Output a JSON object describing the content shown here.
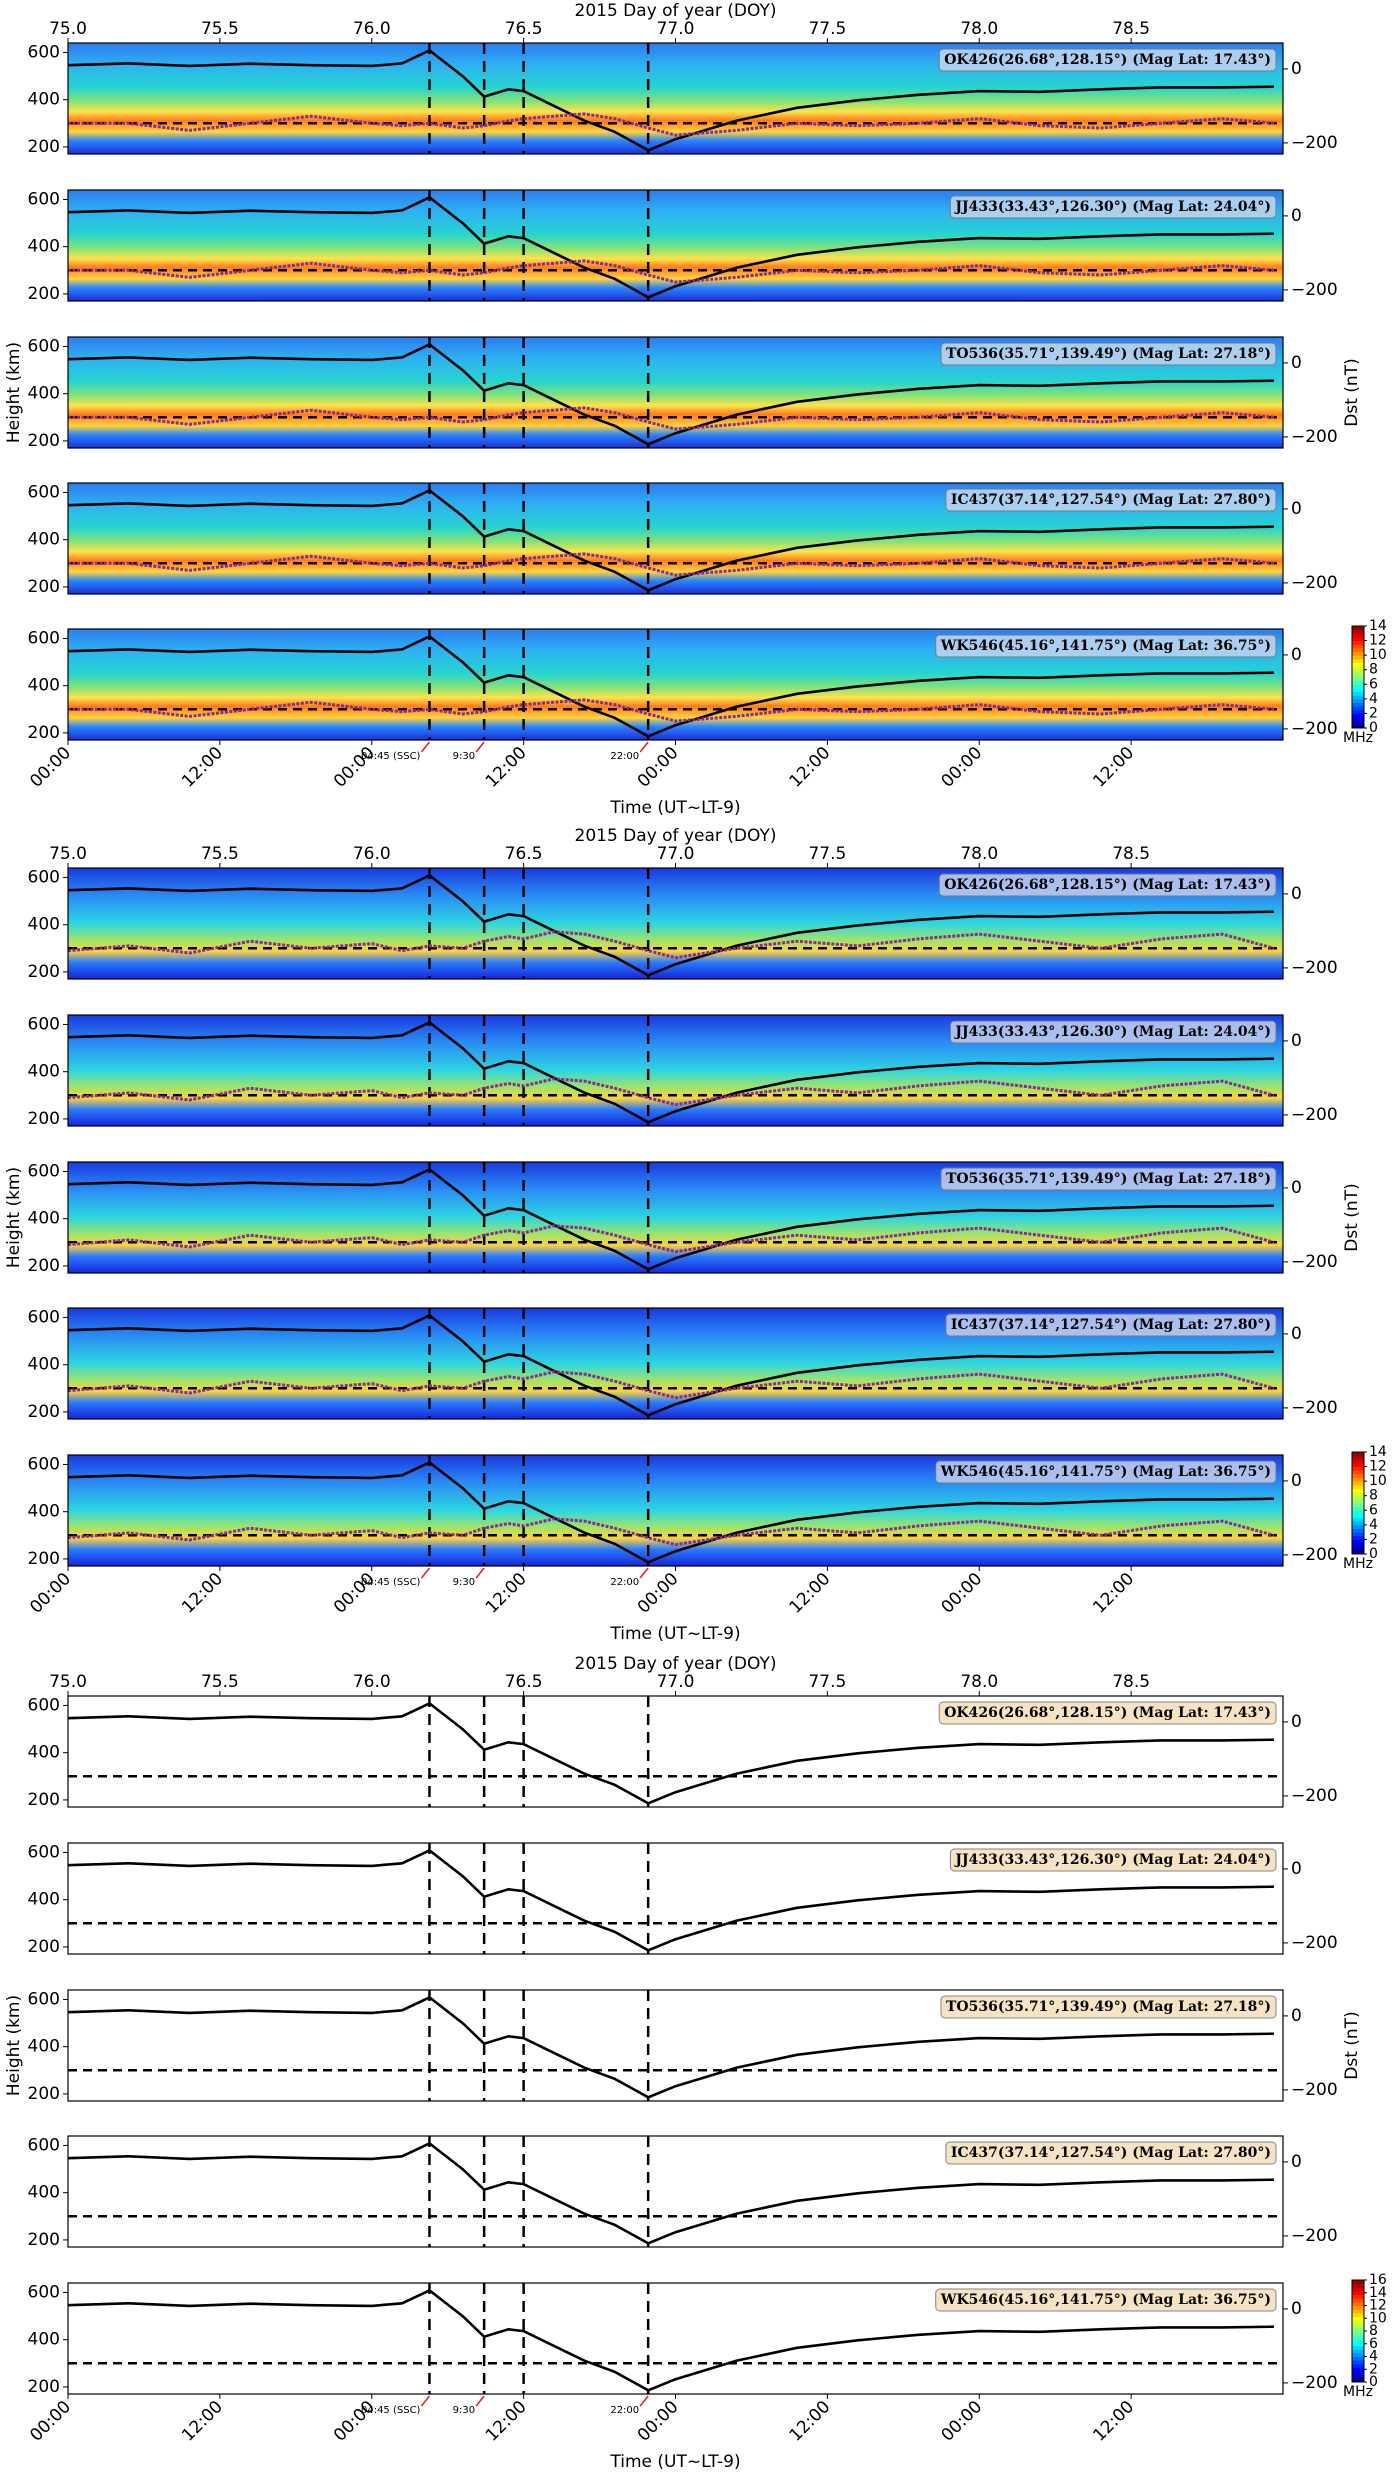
{
  "chart_data": [
    {
      "type": "contour",
      "title": "2015 Day of year (DOY)",
      "xlabel": "Time (UT~LT-9)",
      "ylabel": "Height (km)",
      "y2label": "Dst (nT)",
      "xlim": [
        75.0,
        79.0
      ],
      "x2ticks": [
        {
          "value": 75.0,
          "label": "75.0"
        },
        75.5,
        {
          "value": 76.0,
          "label": "76.0"
        },
        76.5,
        {
          "value": 77.0,
          "label": "77.0"
        },
        77.5,
        {
          "value": 78.0,
          "label": "78.0"
        },
        78.5
      ],
      "xticks": [
        {
          "value": 75.0,
          "label": "00:00"
        },
        {
          "value": 75.5,
          "label": "12:00"
        },
        {
          "value": 76.0,
          "label": "00:00"
        },
        {
          "value": 76.5,
          "label": "12:00"
        },
        {
          "value": 77.0,
          "label": "00:00"
        },
        {
          "value": 77.5,
          "label": "12:00"
        },
        {
          "value": 78.0,
          "label": "00:00"
        },
        {
          "value": 78.5,
          "label": "12:00"
        }
      ],
      "ylim": [
        170,
        640
      ],
      "yticks": [
        200,
        400,
        600
      ],
      "y2lim": [
        -230,
        70
      ],
      "y2ticks": [
        0,
        {
          "value": -200,
          "label": "−200"
        }
      ],
      "hline": 300,
      "vlines": [
        76.19,
        76.37,
        76.5,
        76.91
      ],
      "annotations": [
        {
          "x": 76.19,
          "label": "04:45 (SSC)"
        },
        {
          "x": 76.37,
          "label": "9:30"
        },
        {
          "x": 76.91,
          "label": "22:00"
        }
      ],
      "panels": [
        {
          "label": "OK426(26.68°,128.15°) (Mag Lat: 17.43°)"
        },
        {
          "label": "JJ433(33.43°,126.30°) (Mag Lat: 24.04°)"
        },
        {
          "label": "TO536(35.71°,139.49°) (Mag Lat: 27.18°)"
        },
        {
          "label": "IC437(37.14°,127.54°) (Mag Lat: 27.80°)"
        },
        {
          "label": "WK546(45.16°,141.75°) (Mag Lat: 36.75°)"
        }
      ],
      "x": [
        75.0,
        75.2,
        75.4,
        75.6,
        75.8,
        76.0,
        76.1,
        76.19,
        76.3,
        76.37,
        76.45,
        76.5,
        76.6,
        76.7,
        76.8,
        76.91,
        77.0,
        77.2,
        77.4,
        77.6,
        77.8,
        78.0,
        78.2,
        78.4,
        78.6,
        78.8,
        78.97
      ],
      "series": [
        {
          "color": "#000000",
          "axis": "y2",
          "values": [
            10,
            15,
            8,
            14,
            10,
            8,
            15,
            50,
            -20,
            -75,
            -55,
            -60,
            -100,
            -140,
            -170,
            -220,
            -190,
            -140,
            -105,
            -85,
            -70,
            -60,
            -62,
            -55,
            -50,
            -50,
            -48
          ]
        },
        {
          "color": "#8b2a8b",
          "values": [
            300,
            300,
            270,
            300,
            330,
            300,
            290,
            300,
            280,
            290,
            310,
            320,
            330,
            340,
            320,
            280,
            250,
            270,
            300,
            290,
            300,
            320,
            290,
            280,
            300,
            320,
            300
          ]
        }
      ],
      "colorbar": {
        "label": "MHz",
        "lim": [
          0,
          14
        ],
        "ticks": [
          0,
          2,
          4,
          6,
          8,
          10,
          12,
          14
        ]
      }
    },
    {
      "type": "contour",
      "title": "2015 Day of year (DOY)",
      "xlabel": "Time (UT~LT-9)",
      "ylabel": "Height (km)",
      "y2label": "Dst (nT)",
      "xlim": [
        75.0,
        79.0
      ],
      "x2ticks": [
        {
          "value": 75.0,
          "label": "75.0"
        },
        75.5,
        {
          "value": 76.0,
          "label": "76.0"
        },
        76.5,
        {
          "value": 77.0,
          "label": "77.0"
        },
        77.5,
        {
          "value": 78.0,
          "label": "78.0"
        },
        78.5
      ],
      "xticks": [
        {
          "value": 75.0,
          "label": "00:00"
        },
        {
          "value": 75.5,
          "label": "12:00"
        },
        {
          "value": 76.0,
          "label": "00:00"
        },
        {
          "value": 76.5,
          "label": "12:00"
        },
        {
          "value": 77.0,
          "label": "00:00"
        },
        {
          "value": 77.5,
          "label": "12:00"
        },
        {
          "value": 78.0,
          "label": "00:00"
        },
        {
          "value": 78.5,
          "label": "12:00"
        }
      ],
      "ylim": [
        170,
        640
      ],
      "yticks": [
        200,
        400,
        600
      ],
      "y2lim": [
        -230,
        70
      ],
      "y2ticks": [
        0,
        {
          "value": -200,
          "label": "−200"
        }
      ],
      "hline": 300,
      "vlines": [
        76.19,
        76.37,
        76.5,
        76.91
      ],
      "annotations": [
        {
          "x": 76.19,
          "label": "04:45 (SSC)"
        },
        {
          "x": 76.37,
          "label": "9:30"
        },
        {
          "x": 76.91,
          "label": "22:00"
        }
      ],
      "panels": [
        {
          "label": "OK426(26.68°,128.15°) (Mag Lat: 17.43°)"
        },
        {
          "label": "JJ433(33.43°,126.30°) (Mag Lat: 24.04°)"
        },
        {
          "label": "TO536(35.71°,139.49°) (Mag Lat: 27.18°)"
        },
        {
          "label": "IC437(37.14°,127.54°) (Mag Lat: 27.80°)"
        },
        {
          "label": "WK546(45.16°,141.75°) (Mag Lat: 36.75°)"
        }
      ],
      "x": [
        75.0,
        75.2,
        75.4,
        75.6,
        75.8,
        76.0,
        76.1,
        76.19,
        76.3,
        76.37,
        76.45,
        76.5,
        76.6,
        76.7,
        76.8,
        76.91,
        77.0,
        77.2,
        77.4,
        77.6,
        77.8,
        78.0,
        78.2,
        78.4,
        78.6,
        78.8,
        78.97
      ],
      "series": [
        {
          "color": "#000000",
          "axis": "y2",
          "values": [
            10,
            15,
            8,
            14,
            10,
            8,
            15,
            50,
            -20,
            -75,
            -55,
            -60,
            -100,
            -140,
            -170,
            -220,
            -190,
            -140,
            -105,
            -85,
            -70,
            -60,
            -62,
            -55,
            -50,
            -50,
            -48
          ]
        },
        {
          "color": "#8b2a8b",
          "values": [
            290,
            310,
            280,
            330,
            300,
            320,
            290,
            310,
            300,
            330,
            350,
            340,
            370,
            360,
            330,
            290,
            260,
            300,
            330,
            310,
            340,
            360,
            330,
            300,
            340,
            360,
            300
          ]
        }
      ],
      "colorbar": {
        "label": "MHz",
        "lim": [
          0,
          14
        ],
        "ticks": [
          0,
          2,
          4,
          6,
          8,
          10,
          12,
          14
        ]
      }
    },
    {
      "type": "contour",
      "title": "2015 Day of year (DOY)",
      "xlabel": "Time (UT~LT-9)",
      "ylabel": "Height (km)",
      "y2label": "Dst (nT)",
      "xlim": [
        75.0,
        79.0
      ],
      "x2ticks": [
        {
          "value": 75.0,
          "label": "75.0"
        },
        75.5,
        {
          "value": 76.0,
          "label": "76.0"
        },
        76.5,
        {
          "value": 77.0,
          "label": "77.0"
        },
        77.5,
        {
          "value": 78.0,
          "label": "78.0"
        },
        78.5
      ],
      "xticks": [
        {
          "value": 75.0,
          "label": "00:00"
        },
        {
          "value": 75.5,
          "label": "12:00"
        },
        {
          "value": 76.0,
          "label": "00:00"
        },
        {
          "value": 76.5,
          "label": "12:00"
        },
        {
          "value": 77.0,
          "label": "00:00"
        },
        {
          "value": 77.5,
          "label": "12:00"
        },
        {
          "value": 78.0,
          "label": "00:00"
        },
        {
          "value": 78.5,
          "label": "12:00"
        }
      ],
      "ylim": [
        170,
        640
      ],
      "yticks": [
        200,
        400,
        600
      ],
      "y2lim": [
        -230,
        70
      ],
      "y2ticks": [
        0,
        {
          "value": -200,
          "label": "−200"
        }
      ],
      "hline": 300,
      "vlines": [
        76.19,
        76.37,
        76.5,
        76.91
      ],
      "annotations": [
        {
          "x": 76.19,
          "label": "04:45 (SSC)"
        },
        {
          "x": 76.37,
          "label": "9:30"
        },
        {
          "x": 76.91,
          "label": "22:00"
        }
      ],
      "panels": [
        {
          "label": "OK426(26.68°,128.15°) (Mag Lat: 17.43°)"
        },
        {
          "label": "JJ433(33.43°,126.30°) (Mag Lat: 24.04°)"
        },
        {
          "label": "TO536(35.71°,139.49°) (Mag Lat: 27.18°)"
        },
        {
          "label": "IC437(37.14°,127.54°) (Mag Lat: 27.80°)"
        },
        {
          "label": "WK546(45.16°,141.75°) (Mag Lat: 36.75°)"
        }
      ],
      "x": [
        75.0,
        75.2,
        75.4,
        75.6,
        75.8,
        76.0,
        76.1,
        76.19,
        76.3,
        76.37,
        76.45,
        76.5,
        76.6,
        76.7,
        76.8,
        76.91,
        77.0,
        77.2,
        77.4,
        77.6,
        77.8,
        78.0,
        78.2,
        78.4,
        78.6,
        78.8,
        78.97
      ],
      "series": [
        {
          "color": "#000000",
          "axis": "y2",
          "values": [
            10,
            15,
            8,
            14,
            10,
            8,
            15,
            50,
            -20,
            -75,
            -55,
            -60,
            -100,
            -140,
            -170,
            -220,
            -190,
            -140,
            -105,
            -85,
            -70,
            -60,
            -62,
            -55,
            -50,
            -50,
            -48
          ]
        }
      ],
      "colorbar": {
        "label": "MHz",
        "lim": [
          0,
          16
        ],
        "ticks": [
          0,
          2,
          4,
          6,
          8,
          10,
          12,
          14,
          16
        ]
      }
    }
  ]
}
